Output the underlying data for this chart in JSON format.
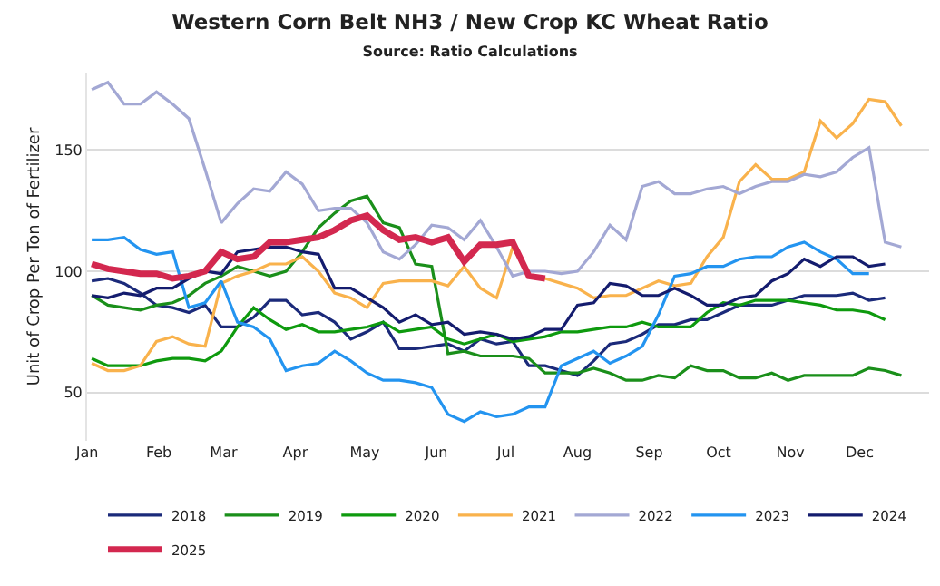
{
  "chart_data": {
    "type": "line",
    "title": "Western Corn Belt NH3 / New Crop KC Wheat Ratio",
    "subtitle": "Source: Ratio Calculations",
    "ylabel": "Unit of Crop Per Ton of Fertilizer",
    "x": [
      "--01-03",
      "--01-10",
      "--01-17",
      "--01-24",
      "--01-31",
      "--02-07",
      "--02-14",
      "--02-21",
      "--02-28",
      "--03-07",
      "--03-14",
      "--03-21",
      "--03-28",
      "--04-04",
      "--04-11",
      "--04-18",
      "--04-25",
      "--05-02",
      "--05-09",
      "--05-16",
      "--05-23",
      "--05-30",
      "--06-06",
      "--06-13",
      "--06-20",
      "--06-27",
      "--07-04",
      "--07-11",
      "--07-18",
      "--07-25",
      "--08-01",
      "--08-08",
      "--08-15",
      "--08-22",
      "--08-29",
      "--09-05",
      "--09-12",
      "--09-19",
      "--09-26",
      "--10-03",
      "--10-10",
      "--10-17",
      "--10-24",
      "--10-31",
      "--11-07",
      "--11-14",
      "--11-21",
      "--11-28",
      "--12-05",
      "--12-12",
      "--12-19"
    ],
    "xlim": [
      "--01-01",
      "--12-31"
    ],
    "xticks": [
      {
        "value": "--01-01",
        "label": "Jan"
      },
      {
        "value": "--02-01",
        "label": "Feb"
      },
      {
        "value": "--03-01",
        "label": "Mar"
      },
      {
        "value": "--04-01",
        "label": "Apr"
      },
      {
        "value": "--05-01",
        "label": "May"
      },
      {
        "value": "--06-01",
        "label": "Jun"
      },
      {
        "value": "--07-01",
        "label": "Jul"
      },
      {
        "value": "--08-01",
        "label": "Aug"
      },
      {
        "value": "--09-01",
        "label": "Sep"
      },
      {
        "value": "--10-01",
        "label": "Oct"
      },
      {
        "value": "--11-01",
        "label": "Nov"
      },
      {
        "value": "--12-01",
        "label": "Dec"
      }
    ],
    "ylim": [
      30,
      182
    ],
    "yticks": [
      50,
      100,
      150
    ],
    "grid": "y",
    "legend": "bottom",
    "line_style": "solid",
    "series": [
      {
        "name": "2018",
        "color": "#1b2a7a",
        "values": [
          96,
          97,
          95,
          91,
          86,
          85,
          83,
          86,
          77,
          77,
          81,
          88,
          88,
          82,
          83,
          79,
          72,
          75,
          79,
          68,
          68,
          69,
          70,
          67,
          72,
          70,
          71,
          61,
          61,
          59,
          57,
          63,
          70,
          71,
          74,
          78,
          78,
          80,
          80,
          83,
          86,
          86,
          86,
          88,
          90,
          90,
          90,
          91,
          88,
          89,
          null
        ]
      },
      {
        "name": "2019",
        "color": "#1a8f1a",
        "values": [
          90,
          86,
          85,
          84,
          86,
          87,
          90,
          95,
          98,
          102,
          100,
          98,
          100,
          108,
          118,
          124,
          129,
          131,
          120,
          118,
          103,
          102,
          66,
          67,
          65,
          65,
          65,
          64,
          58,
          58,
          58,
          60,
          58,
          55,
          55,
          57,
          56,
          61,
          59,
          59,
          56,
          56,
          58,
          55,
          57,
          57,
          57,
          57,
          60,
          59,
          57
        ]
      },
      {
        "name": "2020",
        "color": "#0e9a0e",
        "values": [
          64,
          61,
          61,
          61,
          63,
          64,
          64,
          63,
          67,
          77,
          85,
          80,
          76,
          78,
          75,
          75,
          76,
          77,
          79,
          75,
          76,
          77,
          72,
          70,
          72,
          74,
          71,
          72,
          73,
          75,
          75,
          76,
          77,
          77,
          79,
          77,
          77,
          77,
          83,
          87,
          86,
          88,
          88,
          88,
          87,
          86,
          84,
          84,
          83,
          80,
          null
        ]
      },
      {
        "name": "2021",
        "color": "#f9b24c",
        "values": [
          62,
          59,
          59,
          61,
          71,
          73,
          70,
          69,
          95,
          98,
          100,
          103,
          103,
          106,
          100,
          91,
          89,
          85,
          95,
          96,
          96,
          96,
          94,
          102,
          93,
          89,
          110,
          98,
          97,
          95,
          93,
          89,
          90,
          90,
          93,
          96,
          94,
          95,
          106,
          114,
          137,
          144,
          138,
          138,
          141,
          162,
          155,
          161,
          171,
          170,
          160
        ]
      },
      {
        "name": "2022",
        "color": "#a3a8d4",
        "values": [
          175,
          178,
          169,
          169,
          174,
          169,
          163,
          142,
          120,
          128,
          134,
          133,
          141,
          136,
          125,
          126,
          126,
          120,
          108,
          105,
          111,
          119,
          118,
          113,
          121,
          110,
          98,
          100,
          100,
          99,
          100,
          108,
          119,
          113,
          135,
          137,
          132,
          132,
          134,
          135,
          132,
          135,
          137,
          137,
          140,
          139,
          141,
          147,
          151,
          112,
          110
        ]
      },
      {
        "name": "2023",
        "color": "#2394f0",
        "values": [
          113,
          113,
          114,
          109,
          107,
          108,
          85,
          87,
          96,
          79,
          77,
          72,
          59,
          61,
          62,
          67,
          63,
          58,
          55,
          55,
          54,
          52,
          41,
          38,
          42,
          40,
          41,
          44,
          44,
          61,
          64,
          67,
          62,
          65,
          69,
          82,
          98,
          99,
          102,
          102,
          105,
          106,
          106,
          110,
          112,
          108,
          105,
          99,
          99,
          null,
          null
        ]
      },
      {
        "name": "2024",
        "color": "#141c6e",
        "values": [
          90,
          89,
          91,
          90,
          93,
          93,
          97,
          100,
          99,
          108,
          109,
          110,
          110,
          108,
          107,
          93,
          93,
          89,
          85,
          79,
          82,
          78,
          79,
          74,
          75,
          74,
          72,
          73,
          76,
          76,
          86,
          87,
          95,
          94,
          90,
          90,
          93,
          90,
          86,
          86,
          89,
          90,
          96,
          99,
          105,
          102,
          106,
          106,
          102,
          103,
          null
        ]
      },
      {
        "name": "2025",
        "color": "#d3284f",
        "values": [
          103,
          101,
          100,
          99,
          99,
          97,
          98,
          100,
          108,
          105,
          106,
          112,
          112,
          113,
          114,
          117,
          121,
          123,
          117,
          113,
          114,
          112,
          114,
          104,
          111,
          111,
          112,
          98,
          97,
          null,
          null,
          null,
          null,
          null,
          null,
          null,
          null,
          null,
          null,
          null,
          null,
          null,
          null,
          null,
          null,
          null,
          null,
          null,
          null,
          null,
          null
        ]
      }
    ]
  }
}
